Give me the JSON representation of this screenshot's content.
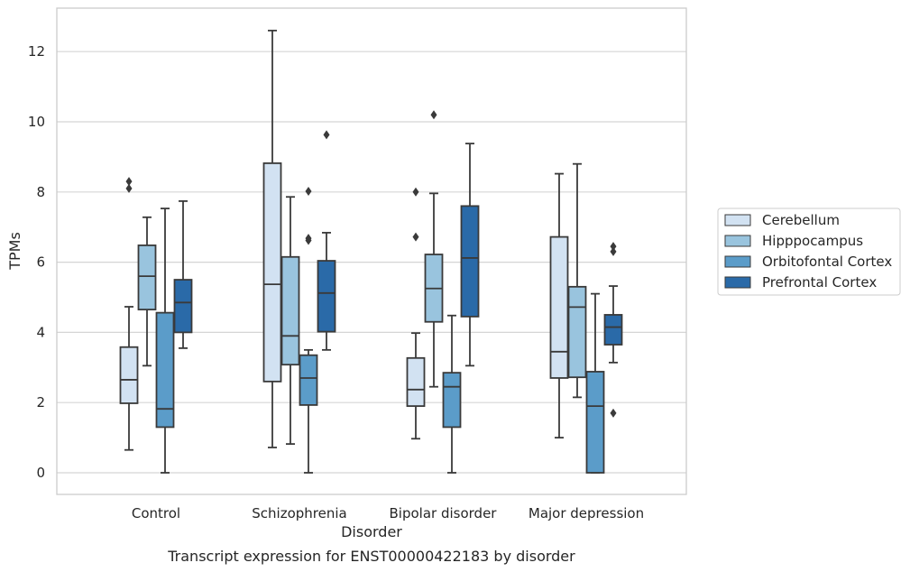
{
  "chart_data": {
    "type": "box",
    "xlabel": "Disorder",
    "ylabel": "TPMs",
    "caption": "Transcript expression for ENST00000422183 by disorder",
    "ylim": [
      -0.6,
      13.2
    ],
    "yticks": [
      0,
      2,
      4,
      6,
      8,
      10,
      12
    ],
    "grid": "horizontal",
    "legend_position": "right",
    "categories": [
      "Control",
      "Schizophrenia",
      "Bipolar disorder",
      "Major depression"
    ],
    "series": [
      {
        "name": "Cerebellum",
        "color": "#d2e2f2",
        "boxes": [
          {
            "whislo": 0.65,
            "q1": 1.98,
            "med": 2.65,
            "q3": 3.58,
            "whishi": 4.73,
            "fliers": [
              8.3,
              8.1
            ]
          },
          {
            "whislo": 0.72,
            "q1": 2.6,
            "med": 5.37,
            "q3": 8.82,
            "whishi": 12.6,
            "fliers": []
          },
          {
            "whislo": 0.97,
            "q1": 1.9,
            "med": 2.37,
            "q3": 3.27,
            "whishi": 3.98,
            "fliers": [
              8.0,
              6.72
            ]
          },
          {
            "whislo": 1.0,
            "q1": 2.7,
            "med": 3.45,
            "q3": 6.72,
            "whishi": 8.52,
            "fliers": []
          }
        ]
      },
      {
        "name": "Hipppocampus",
        "color": "#99c4de",
        "boxes": [
          {
            "whislo": 3.05,
            "q1": 4.65,
            "med": 5.6,
            "q3": 6.48,
            "whishi": 7.28,
            "fliers": []
          },
          {
            "whislo": 0.82,
            "q1": 3.08,
            "med": 3.9,
            "q3": 6.15,
            "whishi": 7.86,
            "fliers": []
          },
          {
            "whislo": 2.45,
            "q1": 4.3,
            "med": 5.25,
            "q3": 6.22,
            "whishi": 7.96,
            "fliers": [
              10.2
            ]
          },
          {
            "whislo": 2.15,
            "q1": 2.72,
            "med": 4.72,
            "q3": 5.3,
            "whishi": 8.8,
            "fliers": []
          }
        ]
      },
      {
        "name": "Orbitofontal Cortex",
        "color": "#5b9cc9",
        "boxes": [
          {
            "whislo": 0.0,
            "q1": 1.3,
            "med": 1.82,
            "q3": 4.56,
            "whishi": 7.53,
            "fliers": []
          },
          {
            "whislo": 0.0,
            "q1": 1.93,
            "med": 2.7,
            "q3": 3.35,
            "whishi": 3.5,
            "fliers": [
              8.02,
              6.68,
              6.62
            ]
          },
          {
            "whislo": 0.0,
            "q1": 1.3,
            "med": 2.45,
            "q3": 2.85,
            "whishi": 4.48,
            "fliers": []
          },
          {
            "whislo": 0.0,
            "q1": 0.0,
            "med": 1.9,
            "q3": 2.88,
            "whishi": 5.1,
            "fliers": []
          }
        ]
      },
      {
        "name": "Prefrontal Cortex",
        "color": "#2a6aa8",
        "boxes": [
          {
            "whislo": 3.55,
            "q1": 4.0,
            "med": 4.85,
            "q3": 5.5,
            "whishi": 7.74,
            "fliers": []
          },
          {
            "whislo": 3.5,
            "q1": 4.02,
            "med": 5.12,
            "q3": 6.04,
            "whishi": 6.84,
            "fliers": [
              9.63
            ]
          },
          {
            "whislo": 3.05,
            "q1": 4.45,
            "med": 6.12,
            "q3": 7.6,
            "whishi": 9.38,
            "fliers": []
          },
          {
            "whislo": 3.14,
            "q1": 3.65,
            "med": 4.15,
            "q3": 4.5,
            "whishi": 5.32,
            "fliers": [
              6.45,
              6.3,
              1.7
            ]
          }
        ]
      }
    ]
  }
}
